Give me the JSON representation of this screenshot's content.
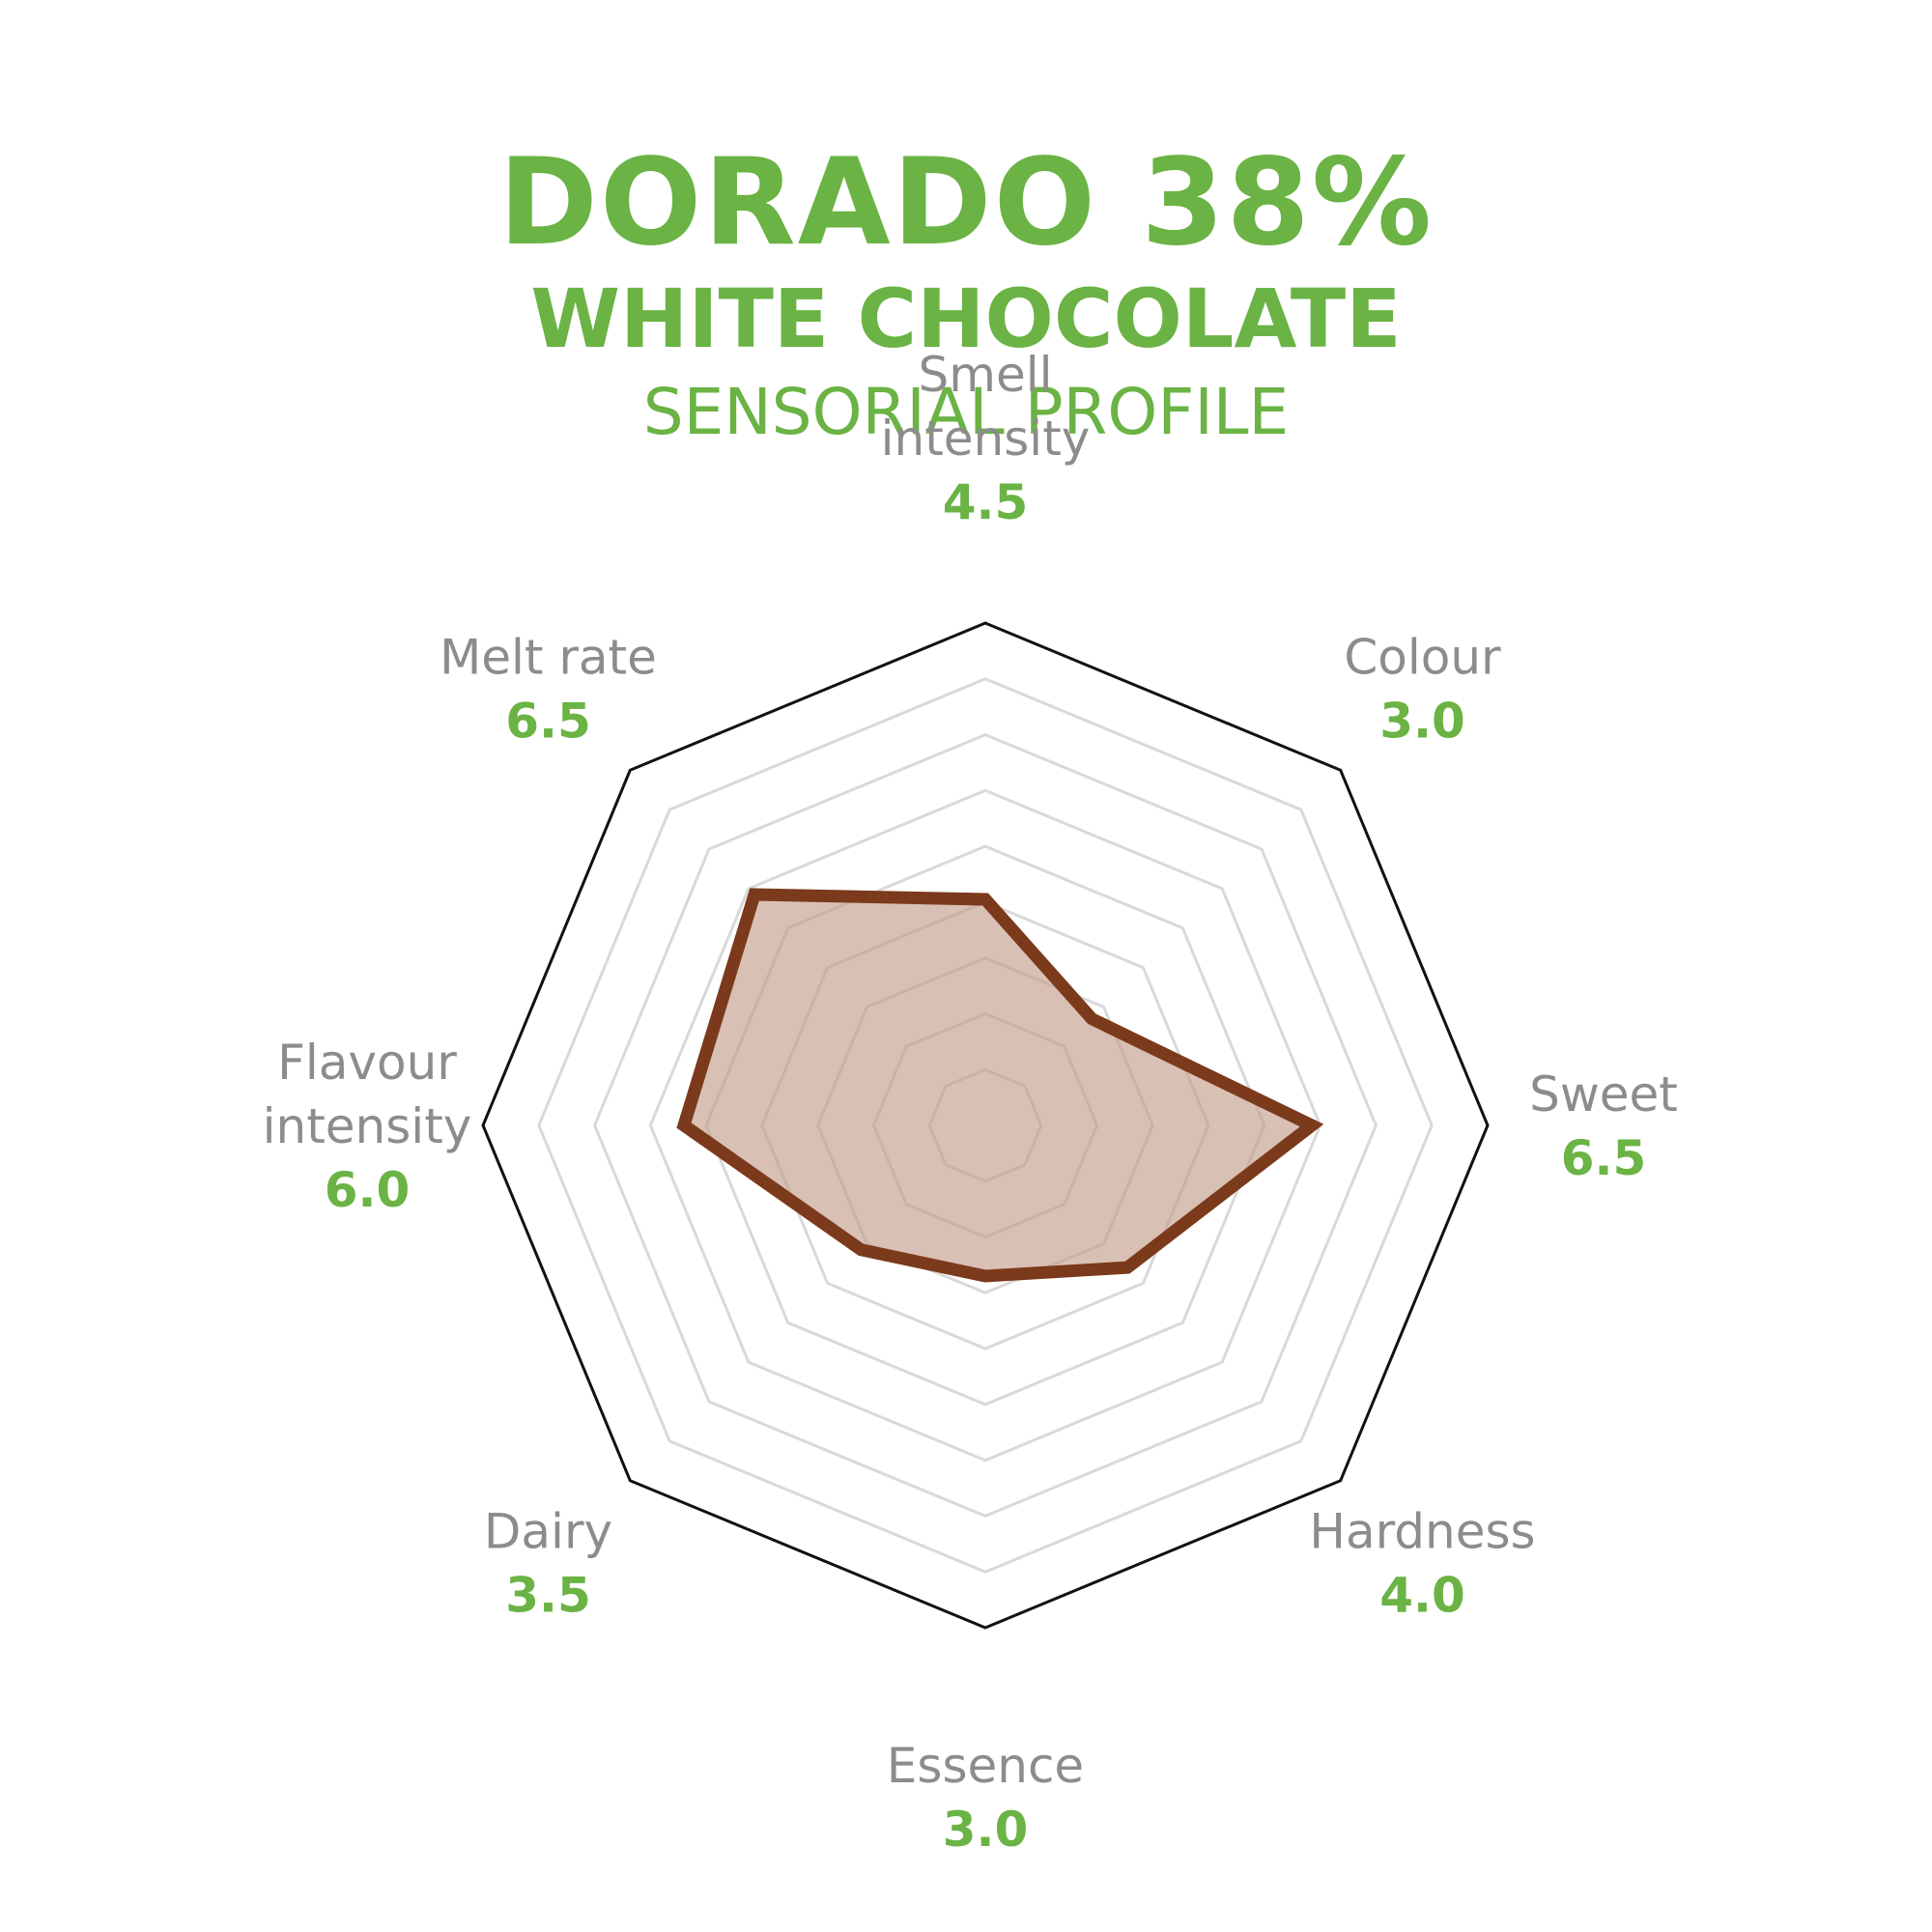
{
  "title": "DORADO 38%",
  "subtitle": "WHITE CHOCOLATE",
  "subtitle2": "SENSORIAL PROFILE",
  "colors": {
    "title": "#6ab344",
    "value": "#6ab344",
    "label": "#8c8c8c",
    "series_stroke": "#7b3a1b",
    "series_fill": "#c29a88",
    "grid": "#d9d9d9",
    "frame": "#111111"
  },
  "chart_data": {
    "type": "radar",
    "scale_max": 10,
    "rings": 8,
    "axes": [
      "Smell intensity",
      "Colour",
      "Sweet",
      "Hardness",
      "Essence",
      "Dairy",
      "Flavour intensity",
      "Melt rate"
    ],
    "value_labels": [
      "4.5",
      "3.0",
      "6.5",
      "4.0",
      "3.0",
      "3.5",
      "6.0",
      "6.5"
    ],
    "values": [
      4.5,
      3.0,
      6.5,
      4.0,
      3.0,
      3.5,
      6.0,
      6.5
    ],
    "grid": true
  }
}
